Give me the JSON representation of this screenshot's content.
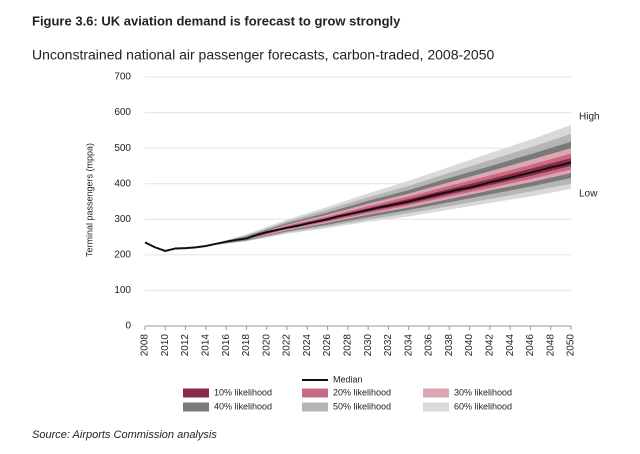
{
  "chart_data": {
    "type": "fan",
    "title": "Figure 3.6: UK aviation demand is forecast to grow strongly",
    "subtitle": "Unconstrained national air passenger forecasts, carbon-traded, 2008-2050",
    "y_label": "Terminal passengers (mppa)",
    "source": "Source: Airports Commission analysis",
    "annotations": {
      "high": "High",
      "low": "Low"
    },
    "xlim": [
      2008,
      2050
    ],
    "xticks": [
      2008,
      2010,
      2012,
      2014,
      2016,
      2018,
      2020,
      2022,
      2024,
      2026,
      2028,
      2030,
      2032,
      2034,
      2036,
      2038,
      2040,
      2042,
      2044,
      2046,
      2048,
      2050
    ],
    "ylim": [
      0,
      700
    ],
    "yticks": [
      0,
      100,
      200,
      300,
      400,
      500,
      600,
      700
    ],
    "grid": true,
    "median": {
      "name": "Median",
      "color": "#111111",
      "x": [
        2008,
        2009,
        2010,
        2011,
        2012,
        2013,
        2014,
        2015,
        2016,
        2017,
        2018,
        2019,
        2020,
        2021,
        2022,
        2023,
        2024,
        2025,
        2026,
        2027,
        2028,
        2029,
        2030,
        2031,
        2032,
        2033,
        2034,
        2035,
        2036,
        2037,
        2038,
        2039,
        2040,
        2041,
        2042,
        2043,
        2044,
        2045,
        2046,
        2047,
        2048,
        2049,
        2050
      ],
      "values": [
        235,
        221,
        211,
        218,
        219,
        221,
        225,
        231,
        237,
        242,
        246,
        256,
        264,
        270,
        276,
        281,
        288,
        294,
        300,
        308,
        314,
        320,
        326,
        333,
        338,
        344,
        350,
        357,
        364,
        371,
        377,
        384,
        389,
        396,
        404,
        410,
        417,
        424,
        431,
        438,
        446,
        452,
        460
      ]
    },
    "band_x": [
      2014,
      2018,
      2022,
      2026,
      2030,
      2034,
      2038,
      2042,
      2046,
      2050
    ],
    "bands": [
      {
        "name": "10% likelihood",
        "color": "#8b2a4a",
        "upper": [
          225,
          247,
          279,
          304,
          331,
          357,
          385,
          413,
          442,
          472
        ],
        "lower": [
          225,
          245,
          274,
          297,
          322,
          344,
          370,
          396,
          422,
          450
        ]
      },
      {
        "name": "20% likelihood",
        "color": "#c96a83",
        "upper": [
          225,
          249,
          282,
          308,
          337,
          364,
          394,
          423,
          453,
          485
        ],
        "lower": [
          225,
          244,
          272,
          293,
          317,
          339,
          364,
          388,
          413,
          440
        ]
      },
      {
        "name": "30% likelihood",
        "color": "#dba7b3",
        "upper": [
          225,
          250,
          285,
          313,
          344,
          372,
          404,
          435,
          467,
          500
        ],
        "lower": [
          225,
          243,
          269,
          290,
          313,
          333,
          357,
          381,
          404,
          430
        ]
      },
      {
        "name": "40% likelihood",
        "color": "#7a7a7a",
        "upper": [
          225,
          252,
          289,
          319,
          352,
          382,
          416,
          449,
          483,
          518
        ],
        "lower": [
          225,
          241,
          266,
          285,
          306,
          326,
          348,
          370,
          392,
          416
        ]
      },
      {
        "name": "50% likelihood",
        "color": "#b5b5b5",
        "upper": [
          225,
          255,
          294,
          327,
          362,
          394,
          430,
          466,
          502,
          540
        ],
        "lower": [
          225,
          239,
          263,
          280,
          299,
          317,
          337,
          357,
          378,
          400
        ]
      },
      {
        "name": "60% likelihood",
        "color": "#d9d9d9",
        "upper": [
          225,
          258,
          299,
          335,
          373,
          408,
          447,
          486,
          524,
          565
        ],
        "lower": [
          225,
          238,
          259,
          275,
          293,
          308,
          327,
          346,
          364,
          385
        ]
      }
    ]
  }
}
